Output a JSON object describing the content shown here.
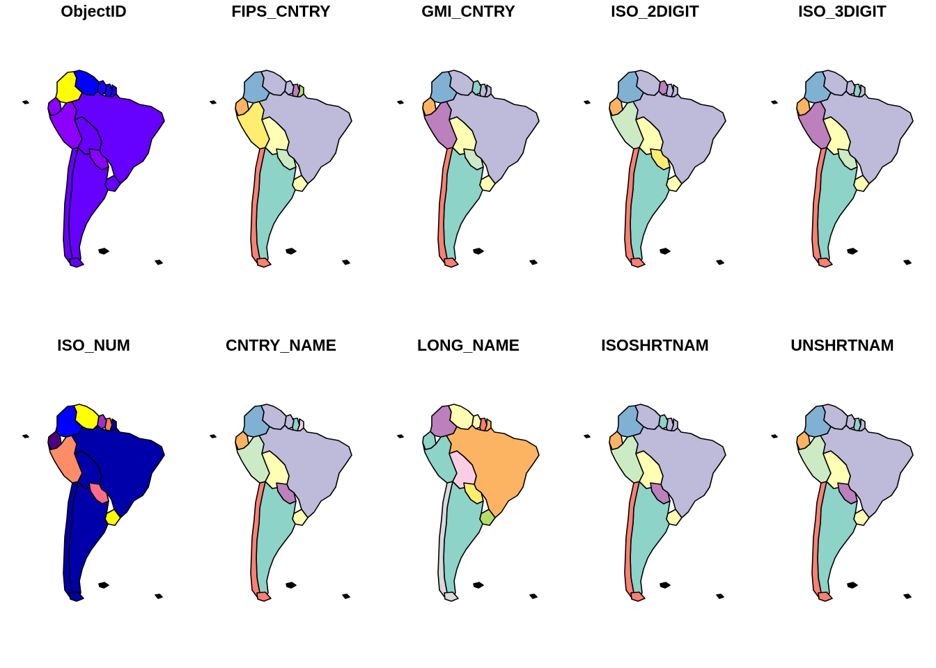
{
  "figure": {
    "panel_titles": [
      "ObjectID",
      "FIPS_CNTRY",
      "GMI_CNTRY",
      "ISO_2DIGIT",
      "ISO_3DIGIT",
      "ISO_NUM",
      "CNTRY_NAME",
      "LONG_NAME",
      "ISOSHRTNAM",
      "UNSHRTNAM"
    ]
  },
  "map_colors": [
    {
      "colombia": "#FFFF00",
      "venezuela": "#0000FF",
      "guyana": "#1a00ff",
      "suriname": "#1a00ff",
      "guiana": "#1a00ff",
      "ecuador": "#8B00FF",
      "peru": "#8B00FF",
      "brazil": "#6600FF",
      "bolivia": "#6600FF",
      "chile": "#6600FF",
      "argentina": "#6600FF",
      "paraguay": "#8B00FF",
      "uruguay": "#6600FF",
      "falklands": "#6600FF"
    },
    {
      "colombia": "#80B1D3",
      "venezuela": "#BEBADA",
      "guyana": "#BEBADA",
      "suriname": "#BC80BD",
      "guiana": "#B3DE69",
      "ecuador": "#FDB462",
      "peru": "#FFED6F",
      "brazil": "#BEBADA",
      "bolivia": "#FFFFB3",
      "chile": "#FB8072",
      "argentina": "#8DD3C7",
      "paraguay": "#CCEBC5",
      "uruguay": "#FFFFB3",
      "falklands": "#000000"
    },
    {
      "colombia": "#80B1D3",
      "venezuela": "#BEBADA",
      "guyana": "#8DD3C7",
      "suriname": "#BEBADA",
      "guiana": "#BEBADA",
      "ecuador": "#FDB462",
      "peru": "#BC80BD",
      "brazil": "#BEBADA",
      "bolivia": "#FFFFB3",
      "chile": "#FB8072",
      "argentina": "#8DD3C7",
      "paraguay": "#CCEBC5",
      "uruguay": "#FFFFB3",
      "falklands": "#000000"
    },
    {
      "colombia": "#80B1D3",
      "venezuela": "#BEBADA",
      "guyana": "#BC80BD",
      "suriname": "#BEBADA",
      "guiana": "#BEBADA",
      "ecuador": "#FDB462",
      "peru": "#CCEBC5",
      "brazil": "#BEBADA",
      "bolivia": "#FFFFB3",
      "chile": "#FB8072",
      "argentina": "#8DD3C7",
      "paraguay": "#FFED6F",
      "uruguay": "#FFFFB3",
      "falklands": "#000000"
    },
    {
      "colombia": "#80B1D3",
      "venezuela": "#BEBADA",
      "guyana": "#BEBADA",
      "suriname": "#8DD3C7",
      "guiana": "#BEBADA",
      "ecuador": "#FDB462",
      "peru": "#BC80BD",
      "brazil": "#BEBADA",
      "bolivia": "#FFFFB3",
      "chile": "#FB8072",
      "argentina": "#8DD3C7",
      "paraguay": "#CCEBC5",
      "uruguay": "#FFFFB3",
      "falklands": "#000000"
    },
    {
      "colombia": "#0000FF",
      "venezuela": "#FFFF00",
      "guyana": "#9932CC",
      "suriname": "#FF7F50",
      "guiana": "#0000AA",
      "ecuador": "#4B0082",
      "peru": "#FF8C69",
      "brazil": "#0000AA",
      "bolivia": "#0000AA",
      "chile": "#0000AA",
      "argentina": "#0000AA",
      "paraguay": "#FF6B8B",
      "uruguay": "#FFFF00",
      "falklands": "#000000"
    },
    {
      "colombia": "#80B1D3",
      "venezuela": "#BEBADA",
      "guyana": "#BEBADA",
      "suriname": "#8DD3C7",
      "guiana": "#FCCDE5",
      "ecuador": "#FDB462",
      "peru": "#CCEBC5",
      "brazil": "#BEBADA",
      "bolivia": "#FFFFB3",
      "chile": "#FB8072",
      "argentina": "#8DD3C7",
      "paraguay": "#BC80BD",
      "uruguay": "#FFFFB3",
      "falklands": "#000000"
    },
    {
      "colombia": "#BC80BD",
      "venezuela": "#FFFFB3",
      "guyana": "#FFFFB3",
      "suriname": "#FB8072",
      "guiana": "#FDB462",
      "ecuador": "#8DD3C7",
      "peru": "#8DD3C7",
      "brazil": "#FDB462",
      "bolivia": "#FCCDE5",
      "chile": "#D9D9D9",
      "argentina": "#8DD3C7",
      "paraguay": "#FFED6F",
      "uruguay": "#B3DE69",
      "falklands": "#000000"
    },
    {
      "colombia": "#80B1D3",
      "venezuela": "#BEBADA",
      "guyana": "#8DD3C7",
      "suriname": "#BEBADA",
      "guiana": "#BEBADA",
      "ecuador": "#FDB462",
      "peru": "#CCEBC5",
      "brazil": "#BEBADA",
      "bolivia": "#FFFFB3",
      "chile": "#FB8072",
      "argentina": "#8DD3C7",
      "paraguay": "#BC80BD",
      "uruguay": "#FFFFB3",
      "falklands": "#000000"
    },
    {
      "colombia": "#80B1D3",
      "venezuela": "#BEBADA",
      "guyana": "#BEBADA",
      "suriname": "#8DD3C7",
      "guiana": "#BEBADA",
      "ecuador": "#FDB462",
      "peru": "#CCEBC5",
      "brazil": "#BEBADA",
      "bolivia": "#FFFFB3",
      "chile": "#FB8072",
      "argentina": "#8DD3C7",
      "paraguay": "#BC80BD",
      "uruguay": "#FFFFB3",
      "falklands": "#000000"
    }
  ]
}
